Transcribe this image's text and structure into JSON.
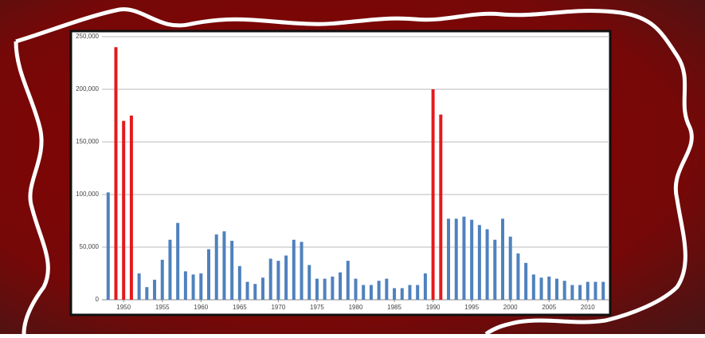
{
  "chart_data": {
    "type": "bar",
    "x": [
      1948,
      1949,
      1950,
      1951,
      1952,
      1953,
      1954,
      1955,
      1956,
      1957,
      1958,
      1959,
      1960,
      1961,
      1962,
      1963,
      1964,
      1965,
      1966,
      1967,
      1968,
      1969,
      1970,
      1971,
      1972,
      1973,
      1974,
      1975,
      1976,
      1977,
      1978,
      1979,
      1980,
      1981,
      1982,
      1983,
      1984,
      1985,
      1986,
      1987,
      1988,
      1989,
      1990,
      1991,
      1992,
      1993,
      1994,
      1995,
      1996,
      1997,
      1998,
      1999,
      2000,
      2001,
      2002,
      2003,
      2004,
      2005,
      2006,
      2007,
      2008,
      2009,
      2010,
      2011,
      2012
    ],
    "values": [
      102000,
      240000,
      170000,
      175000,
      25000,
      12000,
      19000,
      38000,
      57000,
      73000,
      27000,
      24000,
      25000,
      48000,
      62000,
      65000,
      56000,
      32000,
      17000,
      15000,
      21000,
      39000,
      37000,
      42000,
      57000,
      55000,
      33000,
      20000,
      20000,
      22000,
      26000,
      37000,
      20000,
      14000,
      14000,
      18000,
      20000,
      11000,
      11000,
      14000,
      14000,
      25000,
      200000,
      176000,
      77000,
      77000,
      79000,
      76000,
      71000,
      67000,
      57000,
      77000,
      60000,
      44000,
      35000,
      24000,
      21000,
      22000,
      20000,
      18000,
      14000,
      14000,
      17000,
      17000,
      17000
    ],
    "colors": [
      "#4f81bd",
      "#e31a1c",
      "#e31a1c",
      "#e31a1c",
      "#4f81bd",
      "#4f81bd",
      "#4f81bd",
      "#4f81bd",
      "#4f81bd",
      "#4f81bd",
      "#4f81bd",
      "#4f81bd",
      "#4f81bd",
      "#4f81bd",
      "#4f81bd",
      "#4f81bd",
      "#4f81bd",
      "#4f81bd",
      "#4f81bd",
      "#4f81bd",
      "#4f81bd",
      "#4f81bd",
      "#4f81bd",
      "#4f81bd",
      "#4f81bd",
      "#4f81bd",
      "#4f81bd",
      "#4f81bd",
      "#4f81bd",
      "#4f81bd",
      "#4f81bd",
      "#4f81bd",
      "#4f81bd",
      "#4f81bd",
      "#4f81bd",
      "#4f81bd",
      "#4f81bd",
      "#4f81bd",
      "#4f81bd",
      "#4f81bd",
      "#4f81bd",
      "#4f81bd",
      "#e31a1c",
      "#e31a1c",
      "#4f81bd",
      "#4f81bd",
      "#4f81bd",
      "#4f81bd",
      "#4f81bd",
      "#4f81bd",
      "#4f81bd",
      "#4f81bd",
      "#4f81bd",
      "#4f81bd",
      "#4f81bd",
      "#4f81bd",
      "#4f81bd",
      "#4f81bd",
      "#4f81bd",
      "#4f81bd",
      "#4f81bd",
      "#4f81bd",
      "#4f81bd",
      "#4f81bd",
      "#4f81bd"
    ],
    "xlim": [
      1947.2,
      2012.8
    ],
    "xticks": [
      1950,
      1955,
      1960,
      1965,
      1970,
      1975,
      1980,
      1985,
      1990,
      1995,
      2000,
      2005,
      2010
    ],
    "ylim": [
      0,
      250000
    ],
    "yticks": [
      0,
      {
        "value": 50000,
        "label": "50,000"
      },
      {
        "value": 100000,
        "label": "100,000"
      },
      {
        "value": 150000,
        "label": "150,000"
      },
      {
        "value": 200000,
        "label": "200,000"
      },
      {
        "value": 250000,
        "label": "250,000"
      }
    ],
    "grid": true
  }
}
